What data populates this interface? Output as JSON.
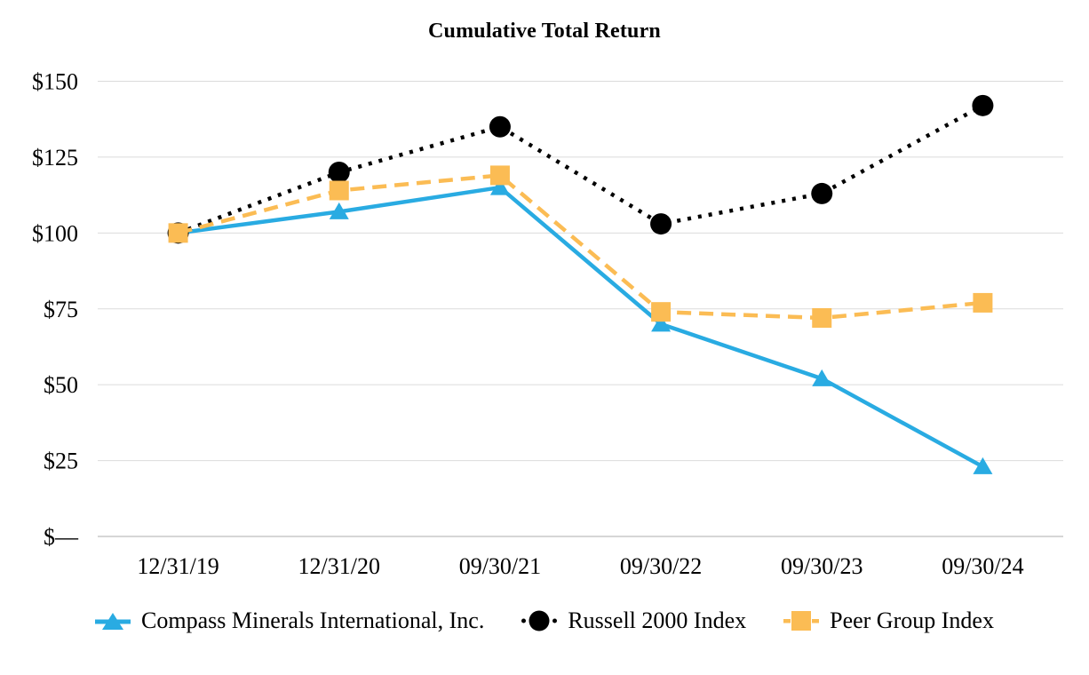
{
  "page": {
    "background": "#ffffff"
  },
  "chart_data": {
    "type": "line",
    "title": "Cumulative Total Return",
    "categories": [
      "12/31/19",
      "12/31/20",
      "09/30/21",
      "09/30/22",
      "09/30/23",
      "09/30/24"
    ],
    "series": [
      {
        "name": "Compass Minerals International, Inc.",
        "color": "#29ABE2",
        "line_style": "solid",
        "marker": "triangle",
        "values": [
          100,
          107,
          115,
          70,
          52,
          23
        ]
      },
      {
        "name": "Russell 2000 Index",
        "color": "#000000",
        "line_style": "dotted",
        "marker": "circle",
        "values": [
          100,
          120,
          135,
          103,
          113,
          142
        ]
      },
      {
        "name": "Peer Group Index",
        "color": "#FBBC54",
        "line_style": "dashed",
        "marker": "square",
        "values": [
          100,
          114,
          119,
          74,
          72,
          77
        ]
      }
    ],
    "y_axis": {
      "min": 0,
      "max": 150,
      "tick_interval": 25,
      "ticks": [
        {
          "label": "$—",
          "value": 0
        },
        {
          "label": "$25",
          "value": 25
        },
        {
          "label": "$50",
          "value": 50
        },
        {
          "label": "$75",
          "value": 75
        },
        {
          "label": "$100",
          "value": 100
        },
        {
          "label": "$125",
          "value": 125
        },
        {
          "label": "$150",
          "value": 150
        }
      ]
    },
    "xlabel": "",
    "ylabel": "",
    "grid": "horizontal",
    "legend_position": "bottom"
  },
  "colors": {
    "gridline": "#DBDBDB",
    "axis_line": "#C8C8C8",
    "text": "#000000"
  }
}
